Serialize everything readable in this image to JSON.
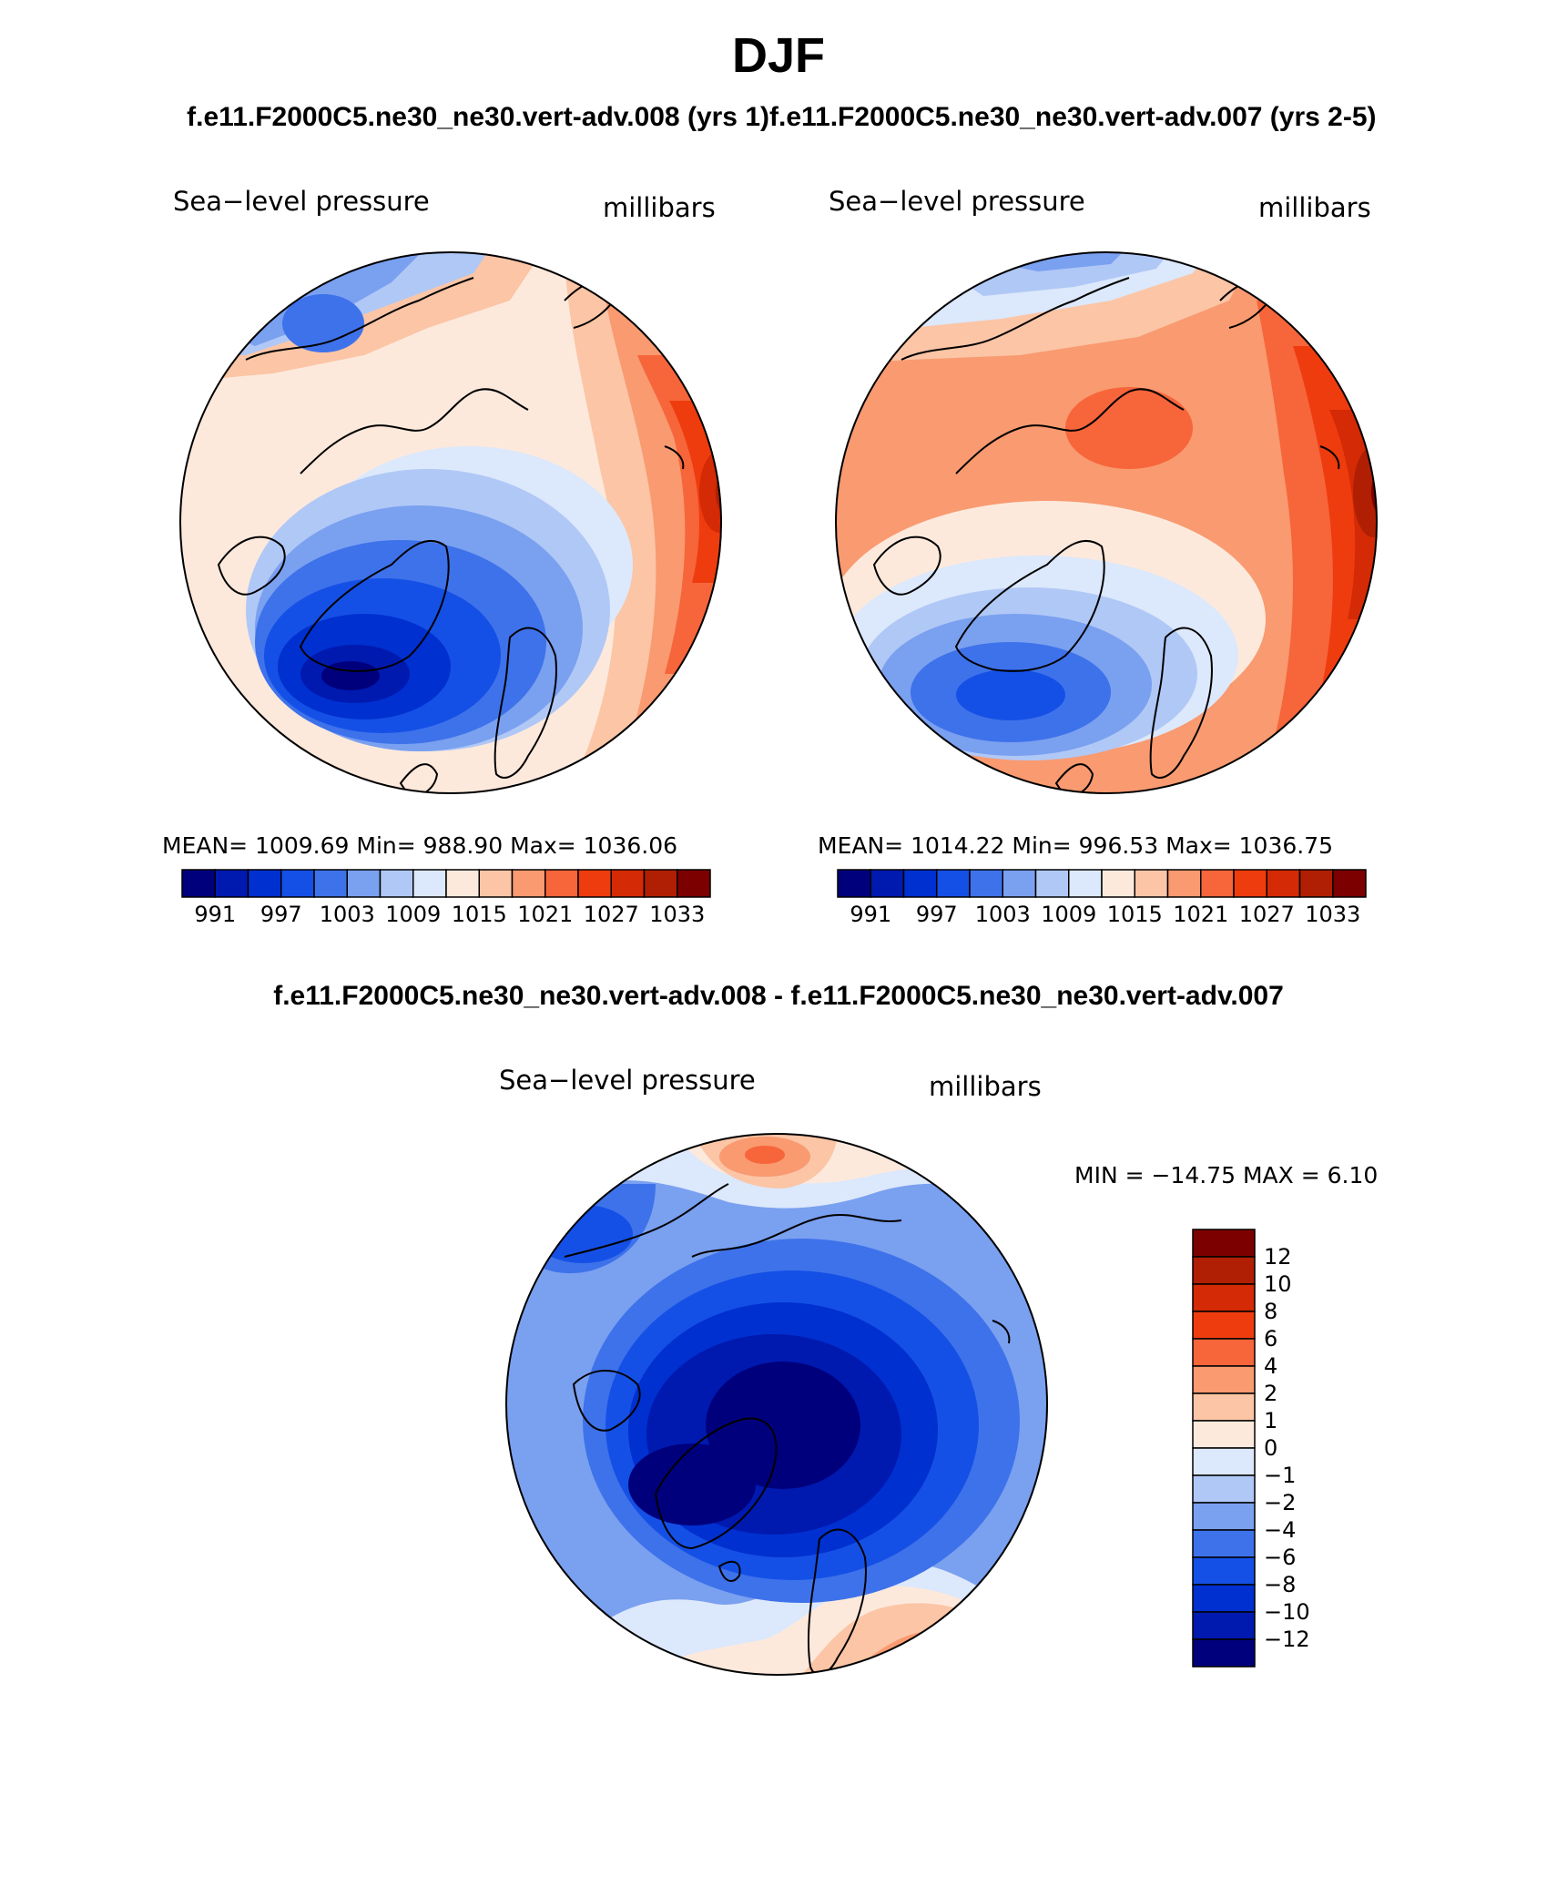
{
  "figure": {
    "title": "DJF",
    "subtitle_left": "f.e11.F2000C5.ne30_ne30.vert-adv.008 (yrs 1)",
    "subtitle_right": "f.e11.F2000C5.ne30_ne30.vert-adv.007 (yrs 2-5)",
    "diff_title": "f.e11.F2000C5.ne30_ne30.vert-adv.008 - f.e11.F2000C5.ne30_ne30.vert-adv.007"
  },
  "panels": [
    {
      "variable": "Sea−level pressure",
      "units": "millibars",
      "stats_text": "MEAN=  1009.69   Min=  988.90   Max=  1036.06",
      "colorbar_ticks": [
        "991",
        "997",
        "1003",
        "1009",
        "1015",
        "1021",
        "1027",
        "1033"
      ]
    },
    {
      "variable": "Sea−level pressure",
      "units": "millibars",
      "stats_text": "MEAN=  1014.22   Min=  996.53   Max=  1036.75",
      "colorbar_ticks": [
        "991",
        "997",
        "1003",
        "1009",
        "1015",
        "1021",
        "1027",
        "1033"
      ]
    },
    {
      "variable": "Sea−level pressure",
      "units": "millibars",
      "stats_text": "MIN  =  −14.75  MAX  =     6.10",
      "colorbar_ticks": [
        "12",
        "10",
        "8",
        "6",
        "4",
        "2",
        "1",
        "0",
        "−1",
        "−2",
        "−4",
        "−6",
        "−8",
        "−10",
        "−12"
      ]
    }
  ],
  "colors": {
    "absolute_scale": [
      "#00007d",
      "#001ab0",
      "#0030d0",
      "#1550e6",
      "#3e72ea",
      "#7aa0f0",
      "#b0c8f6",
      "#dce8fb",
      "#fde9dc",
      "#fbc5a6",
      "#f99a70",
      "#f7653a",
      "#ee3c0e",
      "#d42a05",
      "#b01f03",
      "#7d0000"
    ],
    "difference_scale": [
      "#7d0000",
      "#b01f03",
      "#d42a05",
      "#ee3c0e",
      "#f7653a",
      "#f99a70",
      "#fbc5a6",
      "#fde9dc",
      "#dce8fb",
      "#b0c8f6",
      "#7aa0f0",
      "#3e72ea",
      "#1550e6",
      "#0030d0",
      "#001ab0",
      "#00007d"
    ]
  }
}
